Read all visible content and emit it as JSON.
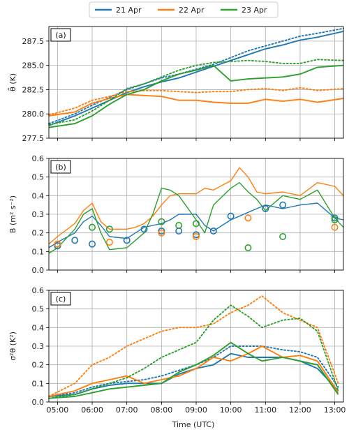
{
  "legend": [
    "21 Apr",
    "22 Apr",
    "23 Apr"
  ],
  "colors": {
    "21 Apr": "#1f77b4",
    "22 Apr": "#ff7f0e",
    "23 Apr": "#2ca02c"
  },
  "xlabel": "Time (UTC)",
  "x_ticks": [
    "05:00",
    "06:00",
    "07:00",
    "08:00",
    "09:00",
    "10:00",
    "11:00",
    "12:00",
    "13:00"
  ],
  "chart_data": [
    {
      "type": "line",
      "panel": "(a)",
      "ylabel": "θ̃ (K)",
      "ylim": [
        277.5,
        289.0
      ],
      "yticks": [
        "277.5",
        "280.0",
        "282.5",
        "285.0",
        "287.5"
      ],
      "ytick_values": [
        277.5,
        280.0,
        282.5,
        285.0,
        287.5
      ],
      "x": [
        4.75,
        5.5,
        6.0,
        6.5,
        7.0,
        7.5,
        8.0,
        8.5,
        9.0,
        9.5,
        10.0,
        10.5,
        11.0,
        11.5,
        12.0,
        12.5,
        13.25
      ],
      "series": [
        {
          "name": "21 Apr",
          "style": "solid",
          "values": [
            278.8,
            279.8,
            280.6,
            281.4,
            282.2,
            282.8,
            283.3,
            283.7,
            284.3,
            284.9,
            285.5,
            286.1,
            286.7,
            287.1,
            287.6,
            287.9,
            288.5
          ]
        },
        {
          "name": "21 Apr",
          "style": "dotted",
          "values": [
            279.0,
            280.0,
            280.9,
            281.7,
            282.5,
            283.1,
            283.7,
            284.1,
            284.6,
            285.1,
            285.8,
            286.5,
            287.0,
            287.5,
            288.0,
            288.3,
            288.8
          ]
        },
        {
          "name": "22 Apr",
          "style": "solid",
          "values": [
            279.8,
            280.2,
            281.1,
            281.6,
            282.0,
            281.9,
            281.8,
            281.4,
            281.4,
            281.2,
            281.1,
            281.1,
            281.5,
            281.3,
            281.5,
            281.2,
            281.6
          ]
        },
        {
          "name": "22 Apr",
          "style": "dotted",
          "values": [
            279.9,
            280.6,
            281.4,
            281.8,
            282.3,
            282.4,
            282.4,
            282.3,
            282.2,
            282.3,
            282.3,
            282.5,
            282.6,
            282.4,
            282.7,
            282.4,
            282.6
          ]
        },
        {
          "name": "23 Apr",
          "style": "solid",
          "values": [
            278.6,
            279.0,
            279.8,
            281.0,
            282.0,
            282.5,
            283.4,
            284.1,
            284.5,
            285.0,
            283.4,
            283.6,
            283.7,
            283.8,
            284.1,
            284.8,
            285.0
          ]
        },
        {
          "name": "23 Apr",
          "style": "dotted",
          "values": [
            278.9,
            279.4,
            280.3,
            281.4,
            282.6,
            283.1,
            283.8,
            284.5,
            285.0,
            285.3,
            285.4,
            285.5,
            285.4,
            285.2,
            285.2,
            285.6,
            285.5
          ]
        }
      ]
    },
    {
      "type": "line",
      "panel": "(b)",
      "ylabel": "B (m² s⁻²)",
      "ylim": [
        0.0,
        0.6
      ],
      "yticks": [
        "0.0",
        "0.1",
        "0.2",
        "0.3",
        "0.4",
        "0.5",
        "0.6"
      ],
      "ytick_values": [
        0.0,
        0.1,
        0.2,
        0.3,
        0.4,
        0.5,
        0.6
      ],
      "x": [
        4.75,
        5.0,
        5.5,
        5.75,
        6.0,
        6.25,
        6.5,
        7.0,
        7.25,
        7.5,
        7.75,
        8.0,
        8.25,
        8.5,
        9.0,
        9.25,
        9.5,
        10.0,
        10.25,
        10.5,
        10.75,
        11.0,
        11.5,
        12.0,
        12.5,
        13.0,
        13.25
      ],
      "series": [
        {
          "name": "21 Apr",
          "style": "solid",
          "values": [
            0.12,
            0.15,
            0.2,
            0.26,
            0.29,
            0.24,
            0.18,
            0.17,
            0.2,
            0.23,
            0.24,
            0.25,
            0.27,
            0.3,
            0.3,
            0.24,
            0.21,
            0.27,
            0.29,
            0.31,
            0.33,
            0.35,
            0.33,
            0.35,
            0.36,
            0.28,
            0.27
          ]
        },
        {
          "name": "22 Apr",
          "style": "solid",
          "values": [
            0.14,
            0.18,
            0.25,
            0.32,
            0.36,
            0.26,
            0.22,
            0.22,
            0.23,
            0.25,
            0.29,
            0.35,
            0.4,
            0.41,
            0.41,
            0.44,
            0.43,
            0.48,
            0.55,
            0.5,
            0.42,
            0.41,
            0.42,
            0.4,
            0.47,
            0.45,
            0.4
          ]
        },
        {
          "name": "23 Apr",
          "style": "solid",
          "values": [
            0.09,
            0.12,
            0.22,
            0.3,
            0.33,
            0.2,
            0.11,
            0.12,
            0.16,
            0.2,
            0.3,
            0.44,
            0.43,
            0.4,
            0.27,
            0.2,
            0.35,
            0.44,
            0.47,
            0.42,
            0.38,
            0.32,
            0.4,
            0.38,
            0.43,
            0.28,
            0.23
          ]
        }
      ],
      "markers": [
        {
          "name": "21 Apr",
          "x": [
            5.0,
            5.5,
            6.0,
            7.0,
            7.5,
            8.0,
            8.5,
            9.0,
            9.5,
            10.0,
            11.0,
            11.5,
            13.0
          ],
          "values": [
            0.13,
            0.16,
            0.14,
            0.16,
            0.22,
            0.21,
            0.21,
            0.19,
            0.21,
            0.29,
            0.33,
            0.35,
            0.28
          ]
        },
        {
          "name": "22 Apr",
          "x": [
            5.0,
            6.5,
            8.0,
            9.0,
            10.5,
            13.0
          ],
          "values": [
            0.14,
            0.15,
            0.2,
            0.18,
            0.28,
            0.23
          ]
        },
        {
          "name": "23 Apr",
          "x": [
            6.0,
            6.5,
            8.0,
            8.5,
            9.0,
            10.5,
            11.5,
            13.0
          ],
          "values": [
            0.23,
            0.22,
            0.26,
            0.24,
            0.25,
            0.12,
            0.18,
            0.27
          ]
        }
      ]
    },
    {
      "type": "line",
      "panel": "(c)",
      "ylabel": "σ²θ (K²)",
      "ylim": [
        0.0,
        0.6
      ],
      "yticks": [
        "0.0",
        "0.1",
        "0.2",
        "0.3",
        "0.4",
        "0.5",
        "0.6"
      ],
      "ytick_values": [
        0.0,
        0.1,
        0.2,
        0.3,
        0.4,
        0.5,
        0.6
      ],
      "x": [
        4.75,
        5.5,
        6.0,
        6.5,
        7.0,
        7.5,
        8.0,
        8.5,
        9.0,
        9.5,
        10.0,
        10.5,
        10.9,
        11.5,
        12.0,
        12.5,
        13.1
      ],
      "series": [
        {
          "name": "21 Apr",
          "style": "solid",
          "values": [
            0.03,
            0.04,
            0.07,
            0.09,
            0.1,
            0.1,
            0.1,
            0.15,
            0.18,
            0.2,
            0.26,
            0.24,
            0.24,
            0.24,
            0.22,
            0.18,
            0.06
          ]
        },
        {
          "name": "21 Apr",
          "style": "dotted",
          "values": [
            0.03,
            0.05,
            0.08,
            0.1,
            0.11,
            0.12,
            0.14,
            0.17,
            0.2,
            0.24,
            0.3,
            0.3,
            0.3,
            0.28,
            0.27,
            0.24,
            0.08
          ]
        },
        {
          "name": "22 Apr",
          "style": "solid",
          "values": [
            0.03,
            0.06,
            0.1,
            0.12,
            0.14,
            0.1,
            0.12,
            0.14,
            0.18,
            0.24,
            0.22,
            0.26,
            0.3,
            0.24,
            0.25,
            0.22,
            0.05
          ]
        },
        {
          "name": "22 Apr",
          "style": "dotted",
          "values": [
            0.03,
            0.1,
            0.2,
            0.24,
            0.3,
            0.34,
            0.38,
            0.4,
            0.4,
            0.42,
            0.48,
            0.52,
            0.57,
            0.48,
            0.44,
            0.4,
            0.1
          ]
        },
        {
          "name": "23 Apr",
          "style": "solid",
          "values": [
            0.02,
            0.03,
            0.05,
            0.07,
            0.08,
            0.09,
            0.1,
            0.16,
            0.2,
            0.25,
            0.32,
            0.26,
            0.22,
            0.24,
            0.22,
            0.2,
            0.04
          ]
        },
        {
          "name": "23 Apr",
          "style": "dotted",
          "values": [
            0.02,
            0.04,
            0.07,
            0.1,
            0.13,
            0.18,
            0.24,
            0.28,
            0.32,
            0.44,
            0.52,
            0.46,
            0.4,
            0.44,
            0.45,
            0.38,
            0.06
          ]
        }
      ]
    }
  ]
}
